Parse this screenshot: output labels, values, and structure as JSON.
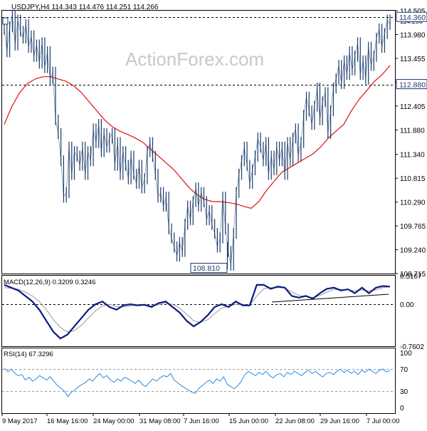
{
  "chart_data": {
    "type": "line",
    "symbol": "USDJPY",
    "timeframe": "H4",
    "ohlc": {
      "open": 114.343,
      "high": 114.476,
      "low": 114.251,
      "close": 114.266
    },
    "header_text": "USDJPY,H4  114.343 114.476 114.251 114.266",
    "watermark": "ActionForex.com",
    "colors": {
      "price": "#1a3a6b",
      "moving_average": "#e01010",
      "macd_main": "#0a1a80",
      "macd_signal": "#9a9a9a",
      "rsi": "#2a8be0",
      "trendline": "#000000",
      "levels": "#000000",
      "watermark": "#c8c8c8"
    },
    "price_panel": {
      "ylim": [
        108.715,
        114.505
      ],
      "ytick_labels": [
        "114.505",
        "113.980",
        "113.455",
        "112.930",
        "112.405",
        "111.880",
        "111.340",
        "110.815",
        "110.290",
        "109.765",
        "109.240",
        "108.715"
      ],
      "tick_values": [
        114.505,
        113.98,
        113.455,
        112.93,
        112.405,
        111.88,
        111.34,
        110.815,
        110.29,
        109.765,
        109.24,
        108.715
      ],
      "levels": [
        {
          "value": 114.36,
          "label": "114.360"
        },
        {
          "value": 112.88,
          "label": "112.880"
        }
      ],
      "overlap_tick_label": "114.266",
      "current_price_label": "114.360",
      "low_label": "108.810",
      "low_value": 108.81,
      "price_series": [
        114.1,
        113.6,
        114.15,
        114.4,
        113.75,
        114.3,
        114.05,
        113.9,
        114.2,
        113.7,
        113.95,
        113.5,
        113.75,
        113.35,
        113.8,
        113.25,
        113.6,
        113.0,
        113.15,
        112.1,
        111.8,
        111.2,
        110.4,
        110.5,
        111.5,
        110.9,
        111.4,
        111.3,
        111.1,
        111.5,
        110.9,
        111.4,
        111.2,
        111.9,
        111.6,
        112.0,
        111.4,
        111.8,
        111.5,
        111.7,
        111.8,
        111.1,
        111.6,
        110.9,
        111.4,
        111.1,
        110.8,
        111.3,
        110.9,
        110.7,
        111.1,
        110.6,
        110.8,
        111.4,
        111.6,
        111.3,
        110.9,
        110.4,
        110.5,
        110.2,
        110.4,
        109.7,
        109.5,
        109.3,
        109.1,
        109.4,
        109.2,
        109.8,
        110.2,
        109.9,
        110.3,
        110.6,
        110.2,
        110.5,
        110.3,
        109.9,
        110.1,
        109.8,
        109.6,
        109.3,
        109.5,
        110.4,
        109.7,
        109.2,
        108.9,
        109.6,
        110.5,
        110.9,
        111.2,
        111.5,
        111.1,
        110.7,
        111.0,
        111.3,
        111.7,
        111.5,
        111.2,
        111.6,
        110.9,
        111.3,
        111.0,
        111.5,
        111.2,
        111.5,
        110.9,
        111.6,
        111.2,
        111.7,
        111.9,
        111.3,
        111.6,
        112.2,
        112.6,
        112.3,
        112.0,
        112.4,
        112.8,
        112.1,
        112.5,
        112.7,
        111.8,
        112.3,
        112.8,
        113.0,
        113.3,
        112.9,
        113.4,
        113.1,
        113.6,
        113.2,
        113.5,
        113.8,
        113.1,
        113.4,
        113.0,
        113.7,
        113.3,
        113.5,
        113.9,
        114.1,
        113.7,
        114.0,
        114.3,
        114.2
      ],
      "ma_series": [
        112.0,
        112.4,
        112.7,
        112.9,
        113.0,
        113.05,
        113.05,
        113.0,
        112.95,
        112.85,
        112.7,
        112.5,
        112.3,
        112.1,
        111.95,
        111.85,
        111.78,
        111.7,
        111.6,
        111.45,
        111.3,
        111.15,
        111.0,
        110.8,
        110.6,
        110.45,
        110.35,
        110.3,
        110.3,
        110.28,
        110.25,
        110.2,
        110.15,
        110.3,
        110.55,
        110.75,
        110.95,
        111.05,
        111.15,
        111.25,
        111.35,
        111.5,
        111.7,
        111.85,
        112.0,
        112.3,
        112.55,
        112.75,
        112.95,
        113.1,
        113.3
      ]
    },
    "macd_panel": {
      "label": "MACD(12,26,9) 0.3209 0.3246",
      "ylim": [
        -0.7602,
        0.5167
      ],
      "ytick_labels": [
        "0.5167",
        "0.00",
        "-0.7602"
      ],
      "tick_values": [
        0.5167,
        0.0,
        -0.7602
      ],
      "macd_series": [
        0.35,
        0.3,
        0.25,
        0.15,
        0.05,
        -0.1,
        -0.3,
        -0.5,
        -0.62,
        -0.55,
        -0.4,
        -0.25,
        -0.1,
        0.0,
        0.05,
        -0.05,
        -0.1,
        -0.02,
        0.0,
        -0.02,
        -0.01,
        -0.05,
        0.02,
        0.05,
        -0.05,
        -0.15,
        -0.3,
        -0.4,
        -0.32,
        -0.2,
        -0.05,
        0.0,
        -0.05,
        0.05,
        -0.02,
        -0.02,
        0.35,
        0.35,
        0.28,
        0.32,
        0.3,
        0.15,
        0.12,
        0.15,
        0.1,
        0.2,
        0.28,
        0.3,
        0.25,
        0.27,
        0.2,
        0.3,
        0.2,
        0.3,
        0.33,
        0.32
      ],
      "signal_series": [
        0.3,
        0.29,
        0.27,
        0.22,
        0.15,
        0.05,
        -0.1,
        -0.28,
        -0.42,
        -0.5,
        -0.48,
        -0.38,
        -0.25,
        -0.12,
        -0.03,
        0.0,
        -0.04,
        -0.05,
        -0.03,
        -0.02,
        -0.02,
        -0.03,
        -0.01,
        0.02,
        0.0,
        -0.07,
        -0.18,
        -0.3,
        -0.33,
        -0.28,
        -0.17,
        -0.07,
        -0.04,
        0.0,
        0.0,
        -0.02,
        0.15,
        0.28,
        0.3,
        0.3,
        0.3,
        0.22,
        0.16,
        0.14,
        0.12,
        0.16,
        0.22,
        0.27,
        0.27,
        0.26,
        0.24,
        0.26,
        0.24,
        0.26,
        0.3,
        0.32
      ]
    },
    "rsi_panel": {
      "label": "RSI(14) 67.3296",
      "ylim": [
        0,
        100
      ],
      "ytick_labels": [
        "100",
        "70",
        "30",
        "0"
      ],
      "tick_values": [
        100,
        70,
        30,
        0
      ],
      "levels": [
        70,
        30
      ],
      "rsi_series": [
        72,
        65,
        70,
        62,
        58,
        60,
        50,
        55,
        48,
        52,
        58,
        54,
        50,
        56,
        48,
        40,
        35,
        30,
        20,
        28,
        32,
        38,
        42,
        46,
        52,
        48,
        56,
        62,
        54,
        58,
        50,
        46,
        52,
        48,
        55,
        52,
        48,
        44,
        50,
        42,
        38,
        46,
        52,
        48,
        54,
        58,
        56,
        62,
        50,
        45,
        40,
        36,
        32,
        28,
        26,
        35,
        40,
        46,
        50,
        44,
        52,
        48,
        56,
        42,
        38,
        34,
        40,
        48,
        60,
        66,
        62,
        58,
        64,
        60,
        66,
        58,
        54,
        60,
        62,
        56,
        64,
        60,
        66,
        62,
        58,
        64,
        68,
        62,
        66,
        60,
        56,
        62,
        64,
        60,
        66,
        70,
        64,
        68,
        62,
        66,
        60,
        68,
        64,
        70,
        66,
        62,
        68,
        70,
        65,
        67
      ]
    },
    "x_tick_labels": [
      "9 May 2017",
      "16 May 16:00",
      "24 May 00:00",
      "31 May 08:00",
      "7 Jun 16:00",
      "15 Jun 00:00",
      "22 Jun 08:00",
      "29 Jun 16:00",
      "7 Jul 00:00"
    ]
  }
}
